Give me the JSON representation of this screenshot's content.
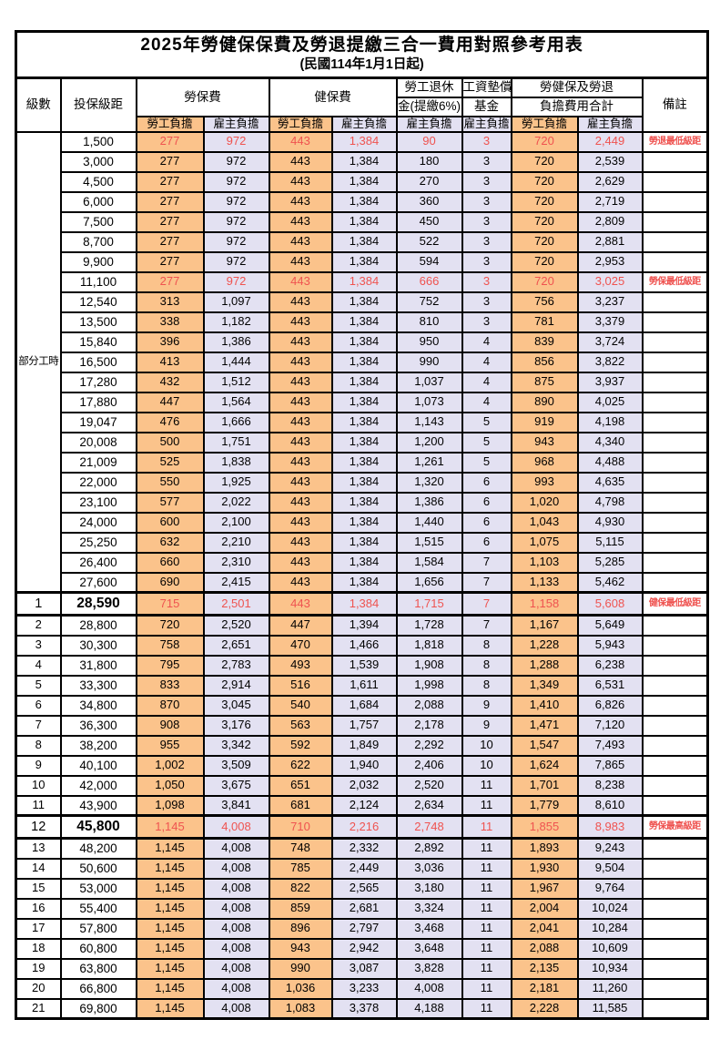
{
  "title": "2025年勞健保保費及勞退提繳三合一費用對照參考用表",
  "subtitle": "(民國114年1月1日起)",
  "colors": {
    "employee_bg": "#fbc38b",
    "employer_bg": "#e3e1f2",
    "highlight_red": "#ef5350",
    "border": "#000000"
  },
  "header": {
    "level": "級數",
    "bracket": "投保級距",
    "labor_insurance": "勞保費",
    "health_insurance": "健保費",
    "pension_line1": "勞工退休",
    "pension_line2": "金(提繳6%)",
    "wage_fund_line1": "工資墊償",
    "wage_fund_line2": "基金",
    "total_line1": "勞健保及勞退",
    "total_line2": "負擔費用合計",
    "remark": "備註",
    "employee": "勞工負擔",
    "employer": "雇主負擔"
  },
  "part_time": {
    "label": "部分工時",
    "rowspan": 23
  },
  "rows": [
    {
      "level": "",
      "bracket": "1,500",
      "values": [
        "277",
        "972",
        "443",
        "1,384",
        "90",
        "3",
        "720",
        "2,449"
      ],
      "remark": "勞退最低級距",
      "red": true,
      "special": false
    },
    {
      "level": "",
      "bracket": "3,000",
      "values": [
        "277",
        "972",
        "443",
        "1,384",
        "180",
        "3",
        "720",
        "2,539"
      ],
      "remark": "",
      "red": false,
      "special": false
    },
    {
      "level": "",
      "bracket": "4,500",
      "values": [
        "277",
        "972",
        "443",
        "1,384",
        "270",
        "3",
        "720",
        "2,629"
      ],
      "remark": "",
      "red": false,
      "special": false
    },
    {
      "level": "",
      "bracket": "6,000",
      "values": [
        "277",
        "972",
        "443",
        "1,384",
        "360",
        "3",
        "720",
        "2,719"
      ],
      "remark": "",
      "red": false,
      "special": false
    },
    {
      "level": "",
      "bracket": "7,500",
      "values": [
        "277",
        "972",
        "443",
        "1,384",
        "450",
        "3",
        "720",
        "2,809"
      ],
      "remark": "",
      "red": false,
      "special": false
    },
    {
      "level": "",
      "bracket": "8,700",
      "values": [
        "277",
        "972",
        "443",
        "1,384",
        "522",
        "3",
        "720",
        "2,881"
      ],
      "remark": "",
      "red": false,
      "special": false
    },
    {
      "level": "",
      "bracket": "9,900",
      "values": [
        "277",
        "972",
        "443",
        "1,384",
        "594",
        "3",
        "720",
        "2,953"
      ],
      "remark": "",
      "red": false,
      "special": false
    },
    {
      "level": "",
      "bracket": "11,100",
      "values": [
        "277",
        "972",
        "443",
        "1,384",
        "666",
        "3",
        "720",
        "3,025"
      ],
      "remark": "勞保最低級距",
      "red": true,
      "special": false
    },
    {
      "level": "",
      "bracket": "12,540",
      "values": [
        "313",
        "1,097",
        "443",
        "1,384",
        "752",
        "3",
        "756",
        "3,237"
      ],
      "remark": "",
      "red": false,
      "special": false
    },
    {
      "level": "",
      "bracket": "13,500",
      "values": [
        "338",
        "1,182",
        "443",
        "1,384",
        "810",
        "3",
        "781",
        "3,379"
      ],
      "remark": "",
      "red": false,
      "special": false
    },
    {
      "level": "",
      "bracket": "15,840",
      "values": [
        "396",
        "1,386",
        "443",
        "1,384",
        "950",
        "4",
        "839",
        "3,724"
      ],
      "remark": "",
      "red": false,
      "special": false
    },
    {
      "level": "",
      "bracket": "16,500",
      "values": [
        "413",
        "1,444",
        "443",
        "1,384",
        "990",
        "4",
        "856",
        "3,822"
      ],
      "remark": "",
      "red": false,
      "special": false
    },
    {
      "level": "",
      "bracket": "17,280",
      "values": [
        "432",
        "1,512",
        "443",
        "1,384",
        "1,037",
        "4",
        "875",
        "3,937"
      ],
      "remark": "",
      "red": false,
      "special": false
    },
    {
      "level": "",
      "bracket": "17,880",
      "values": [
        "447",
        "1,564",
        "443",
        "1,384",
        "1,073",
        "4",
        "890",
        "4,025"
      ],
      "remark": "",
      "red": false,
      "special": false
    },
    {
      "level": "",
      "bracket": "19,047",
      "values": [
        "476",
        "1,666",
        "443",
        "1,384",
        "1,143",
        "5",
        "919",
        "4,198"
      ],
      "remark": "",
      "red": false,
      "special": false
    },
    {
      "level": "",
      "bracket": "20,008",
      "values": [
        "500",
        "1,751",
        "443",
        "1,384",
        "1,200",
        "5",
        "943",
        "4,340"
      ],
      "remark": "",
      "red": false,
      "special": false
    },
    {
      "level": "",
      "bracket": "21,009",
      "values": [
        "525",
        "1,838",
        "443",
        "1,384",
        "1,261",
        "5",
        "968",
        "4,488"
      ],
      "remark": "",
      "red": false,
      "special": false
    },
    {
      "level": "",
      "bracket": "22,000",
      "values": [
        "550",
        "1,925",
        "443",
        "1,384",
        "1,320",
        "6",
        "993",
        "4,635"
      ],
      "remark": "",
      "red": false,
      "special": false
    },
    {
      "level": "",
      "bracket": "23,100",
      "values": [
        "577",
        "2,022",
        "443",
        "1,384",
        "1,386",
        "6",
        "1,020",
        "4,798"
      ],
      "remark": "",
      "red": false,
      "special": false
    },
    {
      "level": "",
      "bracket": "24,000",
      "values": [
        "600",
        "2,100",
        "443",
        "1,384",
        "1,440",
        "6",
        "1,043",
        "4,930"
      ],
      "remark": "",
      "red": false,
      "special": false
    },
    {
      "level": "",
      "bracket": "25,250",
      "values": [
        "632",
        "2,210",
        "443",
        "1,384",
        "1,515",
        "6",
        "1,075",
        "5,115"
      ],
      "remark": "",
      "red": false,
      "special": false
    },
    {
      "level": "",
      "bracket": "26,400",
      "values": [
        "660",
        "2,310",
        "443",
        "1,384",
        "1,584",
        "7",
        "1,103",
        "5,285"
      ],
      "remark": "",
      "red": false,
      "special": false
    },
    {
      "level": "",
      "bracket": "27,600",
      "values": [
        "690",
        "2,415",
        "443",
        "1,384",
        "1,656",
        "7",
        "1,133",
        "5,462"
      ],
      "remark": "",
      "red": false,
      "special": false
    },
    {
      "level": "1",
      "bracket": "28,590",
      "values": [
        "715",
        "2,501",
        "443",
        "1,384",
        "1,715",
        "7",
        "1,158",
        "5,608"
      ],
      "remark": "健保最低級距",
      "red": true,
      "special": true
    },
    {
      "level": "2",
      "bracket": "28,800",
      "values": [
        "720",
        "2,520",
        "447",
        "1,394",
        "1,728",
        "7",
        "1,167",
        "5,649"
      ],
      "remark": "",
      "red": false,
      "special": false
    },
    {
      "level": "3",
      "bracket": "30,300",
      "values": [
        "758",
        "2,651",
        "470",
        "1,466",
        "1,818",
        "8",
        "1,228",
        "5,943"
      ],
      "remark": "",
      "red": false,
      "special": false
    },
    {
      "level": "4",
      "bracket": "31,800",
      "values": [
        "795",
        "2,783",
        "493",
        "1,539",
        "1,908",
        "8",
        "1,288",
        "6,238"
      ],
      "remark": "",
      "red": false,
      "special": false
    },
    {
      "level": "5",
      "bracket": "33,300",
      "values": [
        "833",
        "2,914",
        "516",
        "1,611",
        "1,998",
        "8",
        "1,349",
        "6,531"
      ],
      "remark": "",
      "red": false,
      "special": false
    },
    {
      "level": "6",
      "bracket": "34,800",
      "values": [
        "870",
        "3,045",
        "540",
        "1,684",
        "2,088",
        "9",
        "1,410",
        "6,826"
      ],
      "remark": "",
      "red": false,
      "special": false
    },
    {
      "level": "7",
      "bracket": "36,300",
      "values": [
        "908",
        "3,176",
        "563",
        "1,757",
        "2,178",
        "9",
        "1,471",
        "7,120"
      ],
      "remark": "",
      "red": false,
      "special": false
    },
    {
      "level": "8",
      "bracket": "38,200",
      "values": [
        "955",
        "3,342",
        "592",
        "1,849",
        "2,292",
        "10",
        "1,547",
        "7,493"
      ],
      "remark": "",
      "red": false,
      "special": false
    },
    {
      "level": "9",
      "bracket": "40,100",
      "values": [
        "1,002",
        "3,509",
        "622",
        "1,940",
        "2,406",
        "10",
        "1,624",
        "7,865"
      ],
      "remark": "",
      "red": false,
      "special": false
    },
    {
      "level": "10",
      "bracket": "42,000",
      "values": [
        "1,050",
        "3,675",
        "651",
        "2,032",
        "2,520",
        "11",
        "1,701",
        "8,238"
      ],
      "remark": "",
      "red": false,
      "special": false
    },
    {
      "level": "11",
      "bracket": "43,900",
      "values": [
        "1,098",
        "3,841",
        "681",
        "2,124",
        "2,634",
        "11",
        "1,779",
        "8,610"
      ],
      "remark": "",
      "red": false,
      "special": false
    },
    {
      "level": "12",
      "bracket": "45,800",
      "values": [
        "1,145",
        "4,008",
        "710",
        "2,216",
        "2,748",
        "11",
        "1,855",
        "8,983"
      ],
      "remark": "勞保最高級距",
      "red": true,
      "special": true
    },
    {
      "level": "13",
      "bracket": "48,200",
      "values": [
        "1,145",
        "4,008",
        "748",
        "2,332",
        "2,892",
        "11",
        "1,893",
        "9,243"
      ],
      "remark": "",
      "red": false,
      "special": false
    },
    {
      "level": "14",
      "bracket": "50,600",
      "values": [
        "1,145",
        "4,008",
        "785",
        "2,449",
        "3,036",
        "11",
        "1,930",
        "9,504"
      ],
      "remark": "",
      "red": false,
      "special": false
    },
    {
      "level": "15",
      "bracket": "53,000",
      "values": [
        "1,145",
        "4,008",
        "822",
        "2,565",
        "3,180",
        "11",
        "1,967",
        "9,764"
      ],
      "remark": "",
      "red": false,
      "special": false
    },
    {
      "level": "16",
      "bracket": "55,400",
      "values": [
        "1,145",
        "4,008",
        "859",
        "2,681",
        "3,324",
        "11",
        "2,004",
        "10,024"
      ],
      "remark": "",
      "red": false,
      "special": false
    },
    {
      "level": "17",
      "bracket": "57,800",
      "values": [
        "1,145",
        "4,008",
        "896",
        "2,797",
        "3,468",
        "11",
        "2,041",
        "10,284"
      ],
      "remark": "",
      "red": false,
      "special": false
    },
    {
      "level": "18",
      "bracket": "60,800",
      "values": [
        "1,145",
        "4,008",
        "943",
        "2,942",
        "3,648",
        "11",
        "2,088",
        "10,609"
      ],
      "remark": "",
      "red": false,
      "special": false
    },
    {
      "level": "19",
      "bracket": "63,800",
      "values": [
        "1,145",
        "4,008",
        "990",
        "3,087",
        "3,828",
        "11",
        "2,135",
        "10,934"
      ],
      "remark": "",
      "red": false,
      "special": false
    },
    {
      "level": "20",
      "bracket": "66,800",
      "values": [
        "1,145",
        "4,008",
        "1,036",
        "3,233",
        "4,008",
        "11",
        "2,181",
        "11,260"
      ],
      "remark": "",
      "red": false,
      "special": false
    },
    {
      "level": "21",
      "bracket": "69,800",
      "values": [
        "1,145",
        "4,008",
        "1,083",
        "3,378",
        "4,188",
        "11",
        "2,228",
        "11,585"
      ],
      "remark": "",
      "red": false,
      "special": false
    }
  ],
  "value_columns": [
    "labor_employee",
    "labor_employer",
    "health_employee",
    "health_employer",
    "pension_employer",
    "wage_fund_employer",
    "total_employee",
    "total_employer"
  ]
}
